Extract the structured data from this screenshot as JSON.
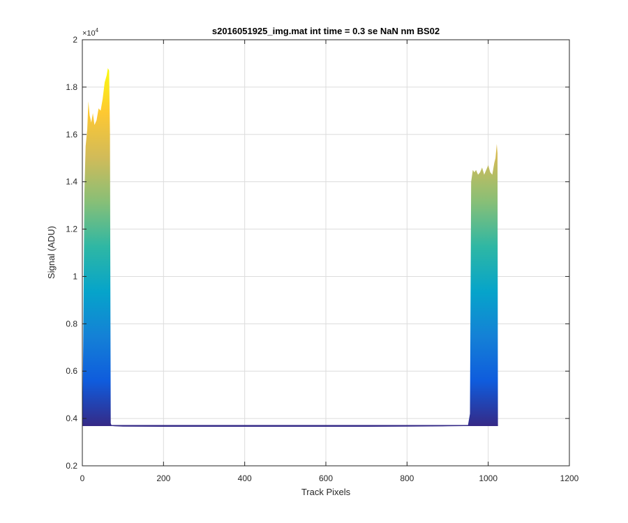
{
  "chart_data": {
    "type": "area",
    "title": "s2016051925_img.mat int time = 0.3 se  NaN nm BS02",
    "xlabel": "Track Pixels",
    "ylabel": "Signal (ADU)",
    "xlim": [
      0,
      1200
    ],
    "ylim": [
      2000,
      20000
    ],
    "xticks": [
      0,
      200,
      400,
      600,
      800,
      1000,
      1200
    ],
    "yticks": [
      2000,
      4000,
      6000,
      8000,
      10000,
      12000,
      14000,
      16000,
      18000,
      20000
    ],
    "xtick_labels": [
      "0",
      "200",
      "400",
      "600",
      "800",
      "1000",
      "1200"
    ],
    "ytick_labels": [
      "0.2",
      "0.4",
      "0.6",
      "0.8",
      "1",
      "1.2",
      "1.4",
      "1.6",
      "1.8",
      "2"
    ],
    "y_exponent_label": "×10",
    "y_exponent_power": "4",
    "grid": true,
    "baseline": 3700,
    "colormap": [
      "#352a87",
      "#0f5cdd",
      "#1481d6",
      "#06a4ca",
      "#2eb7a4",
      "#87bf77",
      "#d1bb59",
      "#fec832",
      "#f9fb0e"
    ],
    "envelope": {
      "x": [
        0,
        2,
        5,
        8,
        12,
        15,
        18,
        22,
        26,
        30,
        35,
        40,
        45,
        50,
        55,
        60,
        63,
        66,
        68,
        70,
        72,
        75,
        80,
        100,
        200,
        300,
        400,
        500,
        600,
        700,
        800,
        900,
        940,
        950,
        955,
        958,
        962,
        966,
        970,
        975,
        980,
        985,
        990,
        995,
        1000,
        1005,
        1010,
        1015,
        1018,
        1021,
        1023,
        1024
      ],
      "y": [
        3700,
        7000,
        13500,
        15500,
        16200,
        17400,
        16800,
        16500,
        16900,
        16400,
        16600,
        17100,
        17000,
        17500,
        18200,
        18500,
        18800,
        18700,
        16000,
        3800,
        3700,
        3680,
        3670,
        3660,
        3650,
        3650,
        3650,
        3650,
        3650,
        3650,
        3660,
        3670,
        3680,
        3700,
        4200,
        14000,
        14500,
        14400,
        14500,
        14300,
        14400,
        14600,
        14300,
        14500,
        14700,
        14400,
        14300,
        14800,
        15000,
        15600,
        15200,
        3700
      ]
    }
  }
}
